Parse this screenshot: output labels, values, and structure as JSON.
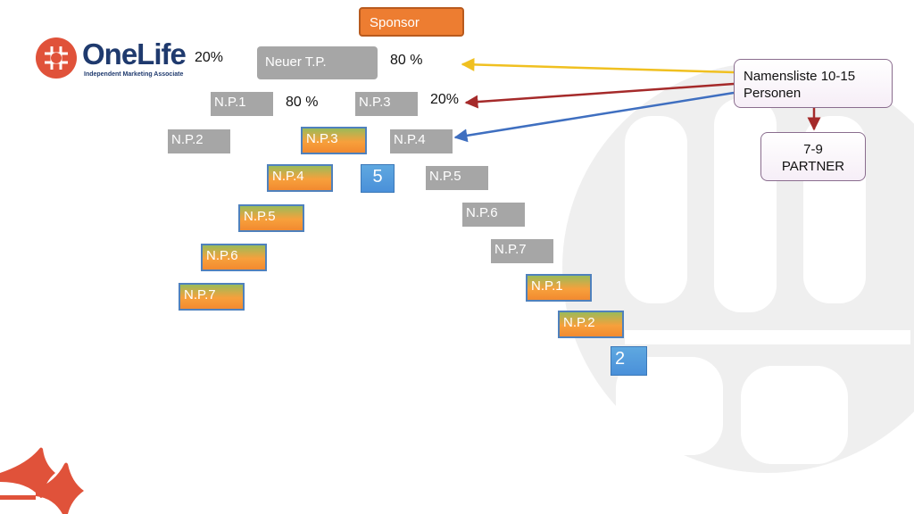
{
  "logo": {
    "wordmark": "OneLife",
    "tagline": "Independent Marketing Associate",
    "colors": {
      "mark": "#e0523a",
      "text": "#1f3a6e"
    }
  },
  "sponsor": {
    "label": "Sponsor",
    "color": "#ed7d31"
  },
  "left_branch": {
    "top_label": "Neuer T.P.",
    "left_pct": "20%",
    "right_pct": "80 %",
    "np1": "N.P.1",
    "np1_pct": "80 %",
    "np2": "N.P.2",
    "chain": [
      "N.P.3",
      "N.P.4",
      "N.P.5",
      "N.P.6",
      "N.P.7"
    ],
    "count": "5"
  },
  "right_branch": {
    "head": "N.P.3",
    "head_pct": "20%",
    "chain_gray": [
      "N.P.4",
      "N.P.5",
      "N.P.6",
      "N.P.7"
    ],
    "chain_color": [
      "N.P.1",
      "N.P.2"
    ],
    "count": "2"
  },
  "callouts": {
    "names_list": {
      "line1": "Namensliste 10-15",
      "line2": "Personen"
    },
    "partner": {
      "line1": "7-9",
      "line2": "PARTNER"
    }
  },
  "arrows": [
    {
      "color": "#f0c020",
      "target": "80 %"
    },
    {
      "color": "#a52a2a",
      "target": "20%"
    },
    {
      "color": "#3f6fc0",
      "target": "N.P.4"
    },
    {
      "color": "#a52a2a",
      "target": "7-9 PARTNER"
    }
  ],
  "colors": {
    "gray_box": "#a6a6a6",
    "gradient_top": "#9bbb59",
    "gradient_bottom": "#f28a30",
    "gradient_border": "#4f81bd",
    "count_box": "#4a90d9"
  }
}
